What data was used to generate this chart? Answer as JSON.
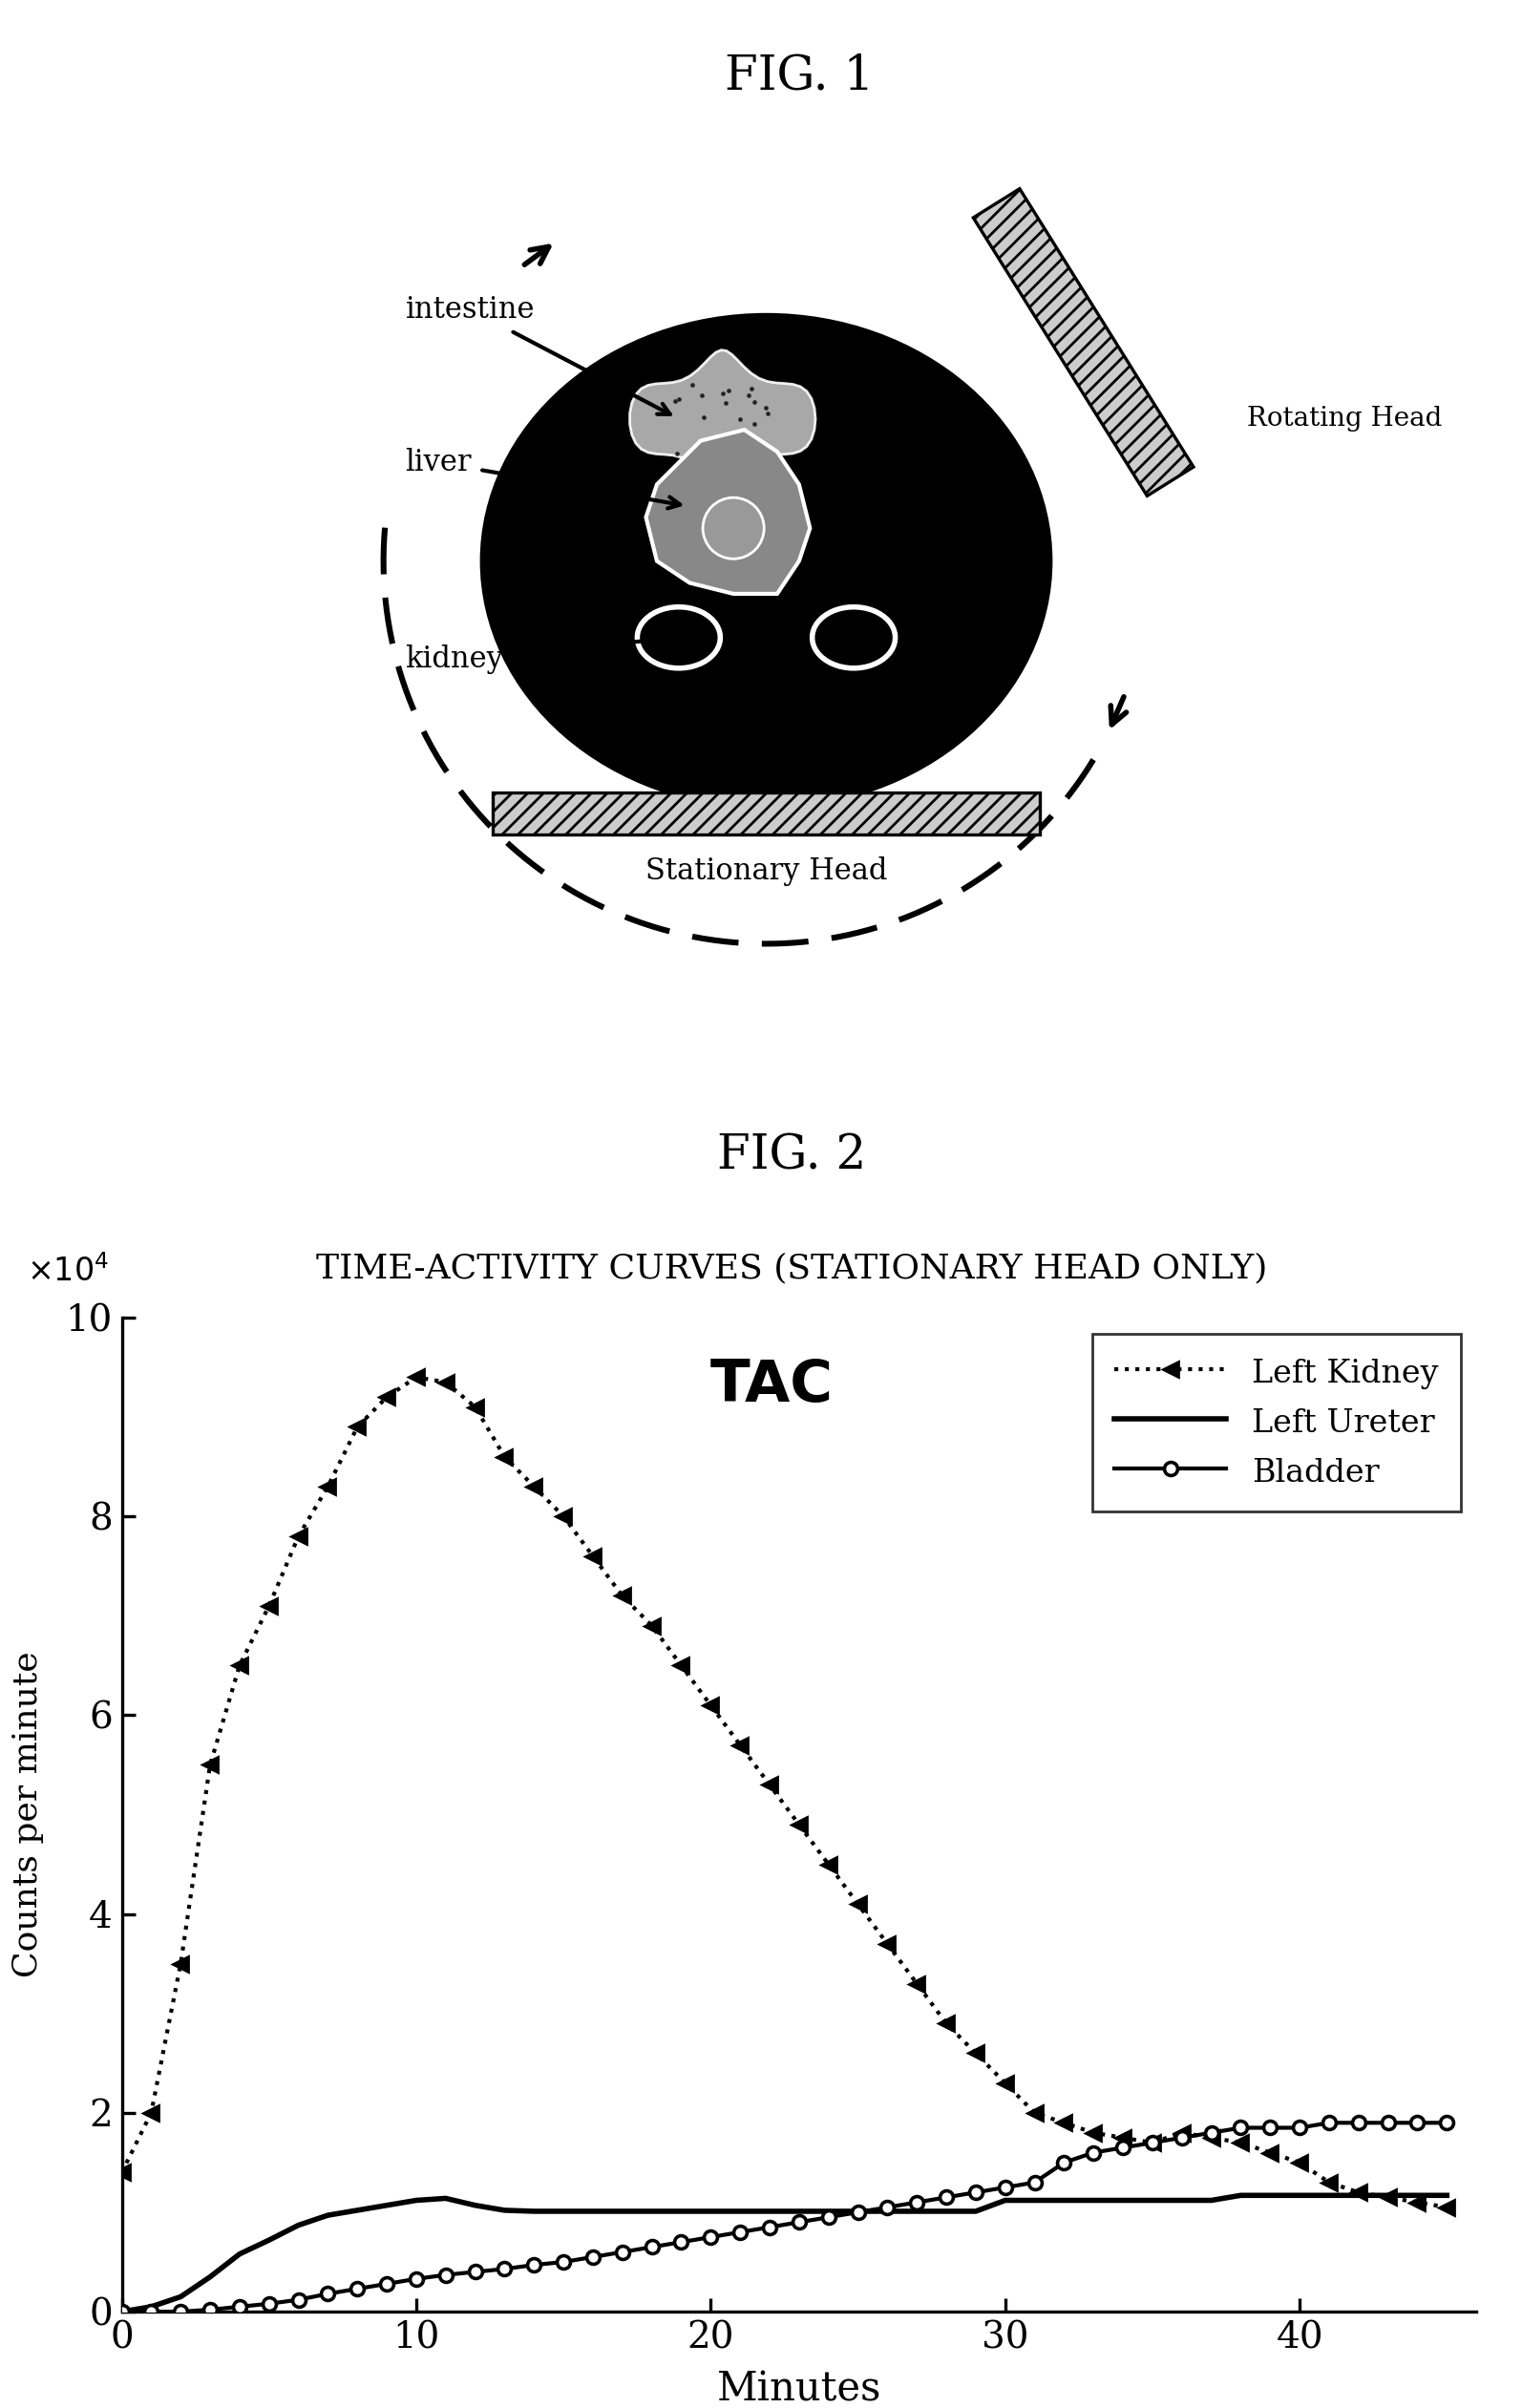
{
  "fig1_title": "FIG. 1",
  "fig2_title": "FIG. 2",
  "subtitle": "TIME-ACTIVITY CURVES (STATIONARY HEAD ONLY)",
  "tac_title": "TAC",
  "ylabel": "Counts per minute",
  "xlabel": "Minutes",
  "ylim": [
    0,
    10
  ],
  "xlim": [
    0,
    46
  ],
  "yticks": [
    0,
    2,
    4,
    6,
    8,
    10
  ],
  "xticks": [
    0,
    10,
    20,
    30,
    40
  ],
  "yticklabels": [
    "0",
    "2",
    "4",
    "6",
    "8",
    "10"
  ],
  "xticklabels": [
    "0",
    "10",
    "20",
    "30",
    "40"
  ],
  "legend_entries": [
    "Left Kidney",
    "Left Ureter",
    "Bladder"
  ],
  "bg_color": "#ffffff",
  "kidney_x": [
    0,
    1,
    2,
    3,
    4,
    5,
    6,
    7,
    8,
    9,
    10,
    11,
    12,
    13,
    14,
    15,
    16,
    17,
    18,
    19,
    20,
    21,
    22,
    23,
    24,
    25,
    26,
    27,
    28,
    29,
    30,
    31,
    32,
    33,
    34,
    35,
    36,
    37,
    38,
    39,
    40,
    41,
    42,
    43,
    44,
    45
  ],
  "kidney_y": [
    1.4,
    2.0,
    3.5,
    5.5,
    6.5,
    7.1,
    7.8,
    8.3,
    8.9,
    9.2,
    9.4,
    9.35,
    9.1,
    8.6,
    8.3,
    8.0,
    7.6,
    7.2,
    6.9,
    6.5,
    6.1,
    5.7,
    5.3,
    4.9,
    4.5,
    4.1,
    3.7,
    3.3,
    2.9,
    2.6,
    2.3,
    2.0,
    1.9,
    1.8,
    1.75,
    1.7,
    1.8,
    1.75,
    1.7,
    1.6,
    1.5,
    1.3,
    1.2,
    1.15,
    1.1,
    1.05
  ],
  "ureter_x": [
    0,
    1,
    2,
    3,
    4,
    5,
    6,
    7,
    8,
    9,
    10,
    11,
    12,
    13,
    14,
    15,
    16,
    17,
    18,
    19,
    20,
    21,
    22,
    23,
    24,
    25,
    26,
    27,
    28,
    29,
    30,
    31,
    32,
    33,
    34,
    35,
    36,
    37,
    38,
    39,
    40,
    41,
    42,
    43,
    44,
    45
  ],
  "ureter_y": [
    0.0,
    0.05,
    0.15,
    0.35,
    0.58,
    0.72,
    0.87,
    0.97,
    1.02,
    1.07,
    1.12,
    1.14,
    1.07,
    1.02,
    1.01,
    1.01,
    1.01,
    1.01,
    1.01,
    1.01,
    1.01,
    1.01,
    1.01,
    1.01,
    1.01,
    1.01,
    1.01,
    1.01,
    1.01,
    1.01,
    1.12,
    1.12,
    1.12,
    1.12,
    1.12,
    1.12,
    1.12,
    1.12,
    1.17,
    1.17,
    1.17,
    1.17,
    1.17,
    1.17,
    1.17,
    1.17
  ],
  "bladder_x": [
    0,
    1,
    2,
    3,
    4,
    5,
    6,
    7,
    8,
    9,
    10,
    11,
    12,
    13,
    14,
    15,
    16,
    17,
    18,
    19,
    20,
    21,
    22,
    23,
    24,
    25,
    26,
    27,
    28,
    29,
    30,
    31,
    32,
    33,
    34,
    35,
    36,
    37,
    38,
    39,
    40,
    41,
    42,
    43,
    44,
    45
  ],
  "bladder_y": [
    0.0,
    0.0,
    0.0,
    0.02,
    0.05,
    0.08,
    0.12,
    0.18,
    0.23,
    0.28,
    0.33,
    0.37,
    0.4,
    0.43,
    0.47,
    0.5,
    0.55,
    0.6,
    0.65,
    0.7,
    0.75,
    0.8,
    0.85,
    0.9,
    0.95,
    1.0,
    1.05,
    1.1,
    1.15,
    1.2,
    1.25,
    1.3,
    1.5,
    1.6,
    1.65,
    1.7,
    1.75,
    1.8,
    1.85,
    1.85,
    1.85,
    1.9,
    1.9,
    1.9,
    1.9,
    1.9
  ]
}
